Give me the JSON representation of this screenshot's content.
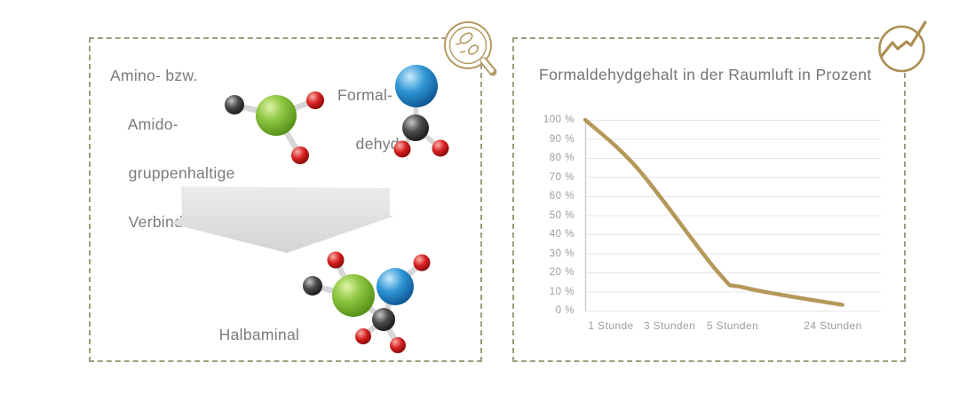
{
  "left_panel": {
    "reactant_label": {
      "line1": "Amino- bzw.",
      "line2": "Amido-",
      "line3": "gruppenhaltige",
      "line4": "Verbindung"
    },
    "formaldehyde_label": {
      "line1": "Formal-",
      "line2": "dehyd"
    },
    "product_label": "Halbaminal"
  },
  "right_panel": {
    "title": "Formaldehydgehalt in der Raumluft in Prozent"
  },
  "chart_data": {
    "type": "line",
    "title": "Formaldehydgehalt in der Raumluft in Prozent",
    "categories": [
      "1 Stunde",
      "3 Stunden",
      "5 Stunden",
      "24 Stunden"
    ],
    "values": [
      85,
      50,
      14,
      3
    ],
    "start_value": 100,
    "curve_points": [
      [
        0,
        100
      ],
      [
        0.18,
        74
      ],
      [
        0.45,
        20
      ],
      [
        0.54,
        12
      ],
      [
        0.87,
        3
      ]
    ],
    "ytick_labels": [
      "100 %",
      "90 %",
      "80 %",
      "70 %",
      "60 %",
      "50 %",
      "40 %",
      "30 %",
      "20 %",
      "10 %",
      "0 %"
    ],
    "xtick_labels": [
      "1 Stunde",
      "3 Stunden",
      "5 Stunden",
      "24 Stunden"
    ],
    "ylim": [
      0,
      100
    ],
    "grid": true,
    "legend": "none",
    "line_color": "#b5985a"
  },
  "icons": {
    "left_panel_icon": "magnifier-with-molecules",
    "right_panel_icon": "trend-line-in-circle"
  },
  "colors": {
    "panel_border": "#a29b7d",
    "accent_gold": "#b5985a",
    "text_gray": "#7a7a7a",
    "tick_gray": "#9c9c9c",
    "arrow_gray": "#dedede",
    "atom_green": "#7db832",
    "atom_blue": "#2f8fc5",
    "atom_black": "#333333",
    "atom_red": "#cf2222"
  }
}
